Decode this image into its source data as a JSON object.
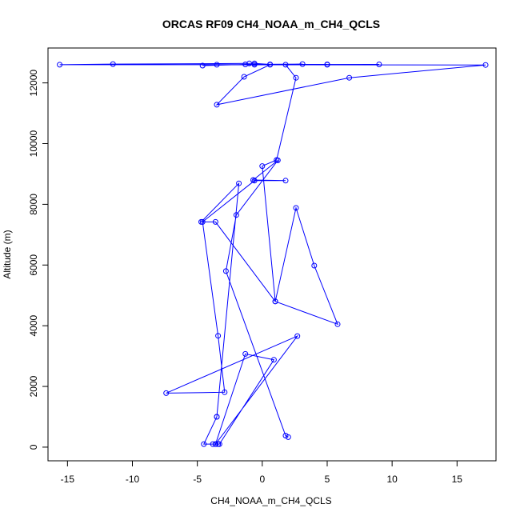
{
  "chart_data": {
    "type": "line",
    "title": "ORCAS RF09 CH4_NOAA_m_CH4_QCLS",
    "xlabel": "CH4_NOAA_m_CH4_QCLS",
    "ylabel": "Altitude (m)",
    "xlim": [
      -16.5,
      18.0
    ],
    "ylim": [
      -450,
      13150
    ],
    "xticks": [
      -15,
      -10,
      -5,
      0,
      5,
      10,
      15
    ],
    "xtick_labels": [
      "-15",
      "-10",
      "-5",
      "0",
      "5",
      "10",
      "15"
    ],
    "yticks": [
      0,
      2000,
      4000,
      6000,
      8000,
      10000,
      12000
    ],
    "ytick_labels": [
      "0",
      "2000",
      "4000",
      "6000",
      "8000",
      "10000",
      "12000"
    ],
    "grid": false,
    "series": [
      {
        "color": "#0000ff",
        "marker": "open-circle",
        "x": [
          2.0,
          1.8,
          -2.8,
          -2.0,
          1.2,
          -0.7,
          1.8,
          -0.6,
          -4.6,
          -3.4,
          -2.9,
          -7.4,
          2.7,
          -3.6,
          -3.3,
          0.9,
          -1.3,
          -3.6,
          -3.4,
          -3.8,
          -4.5,
          -3.5,
          -3.5,
          -1.8,
          -4.7,
          -3.6,
          1.0,
          5.8,
          4.0,
          2.6,
          1.0,
          0.0,
          1.1,
          2.6,
          1.8,
          -0.6,
          3.1,
          -1.3,
          -4.6,
          -3.5,
          17.2,
          6.7,
          -3.5,
          -1.4,
          0.6,
          5.0,
          9.0,
          -15.6,
          -11.5,
          -1.0,
          -0.6,
          0.6,
          5.0
        ],
        "y": [
          330,
          380,
          5800,
          7650,
          9450,
          8800,
          8780,
          8780,
          7420,
          3670,
          1810,
          1780,
          3660,
          100,
          100,
          2880,
          3070,
          100,
          100,
          100,
          100,
          1000,
          1000,
          8690,
          7420,
          7420,
          4800,
          4050,
          5980,
          7880,
          4800,
          9260,
          9460,
          12170,
          12600,
          12600,
          12620,
          12610,
          12570,
          12600,
          12590,
          12170,
          11280,
          12200,
          12600,
          12600,
          12610,
          12600,
          12620,
          12640,
          12640,
          12610,
          12610
        ]
      }
    ]
  }
}
